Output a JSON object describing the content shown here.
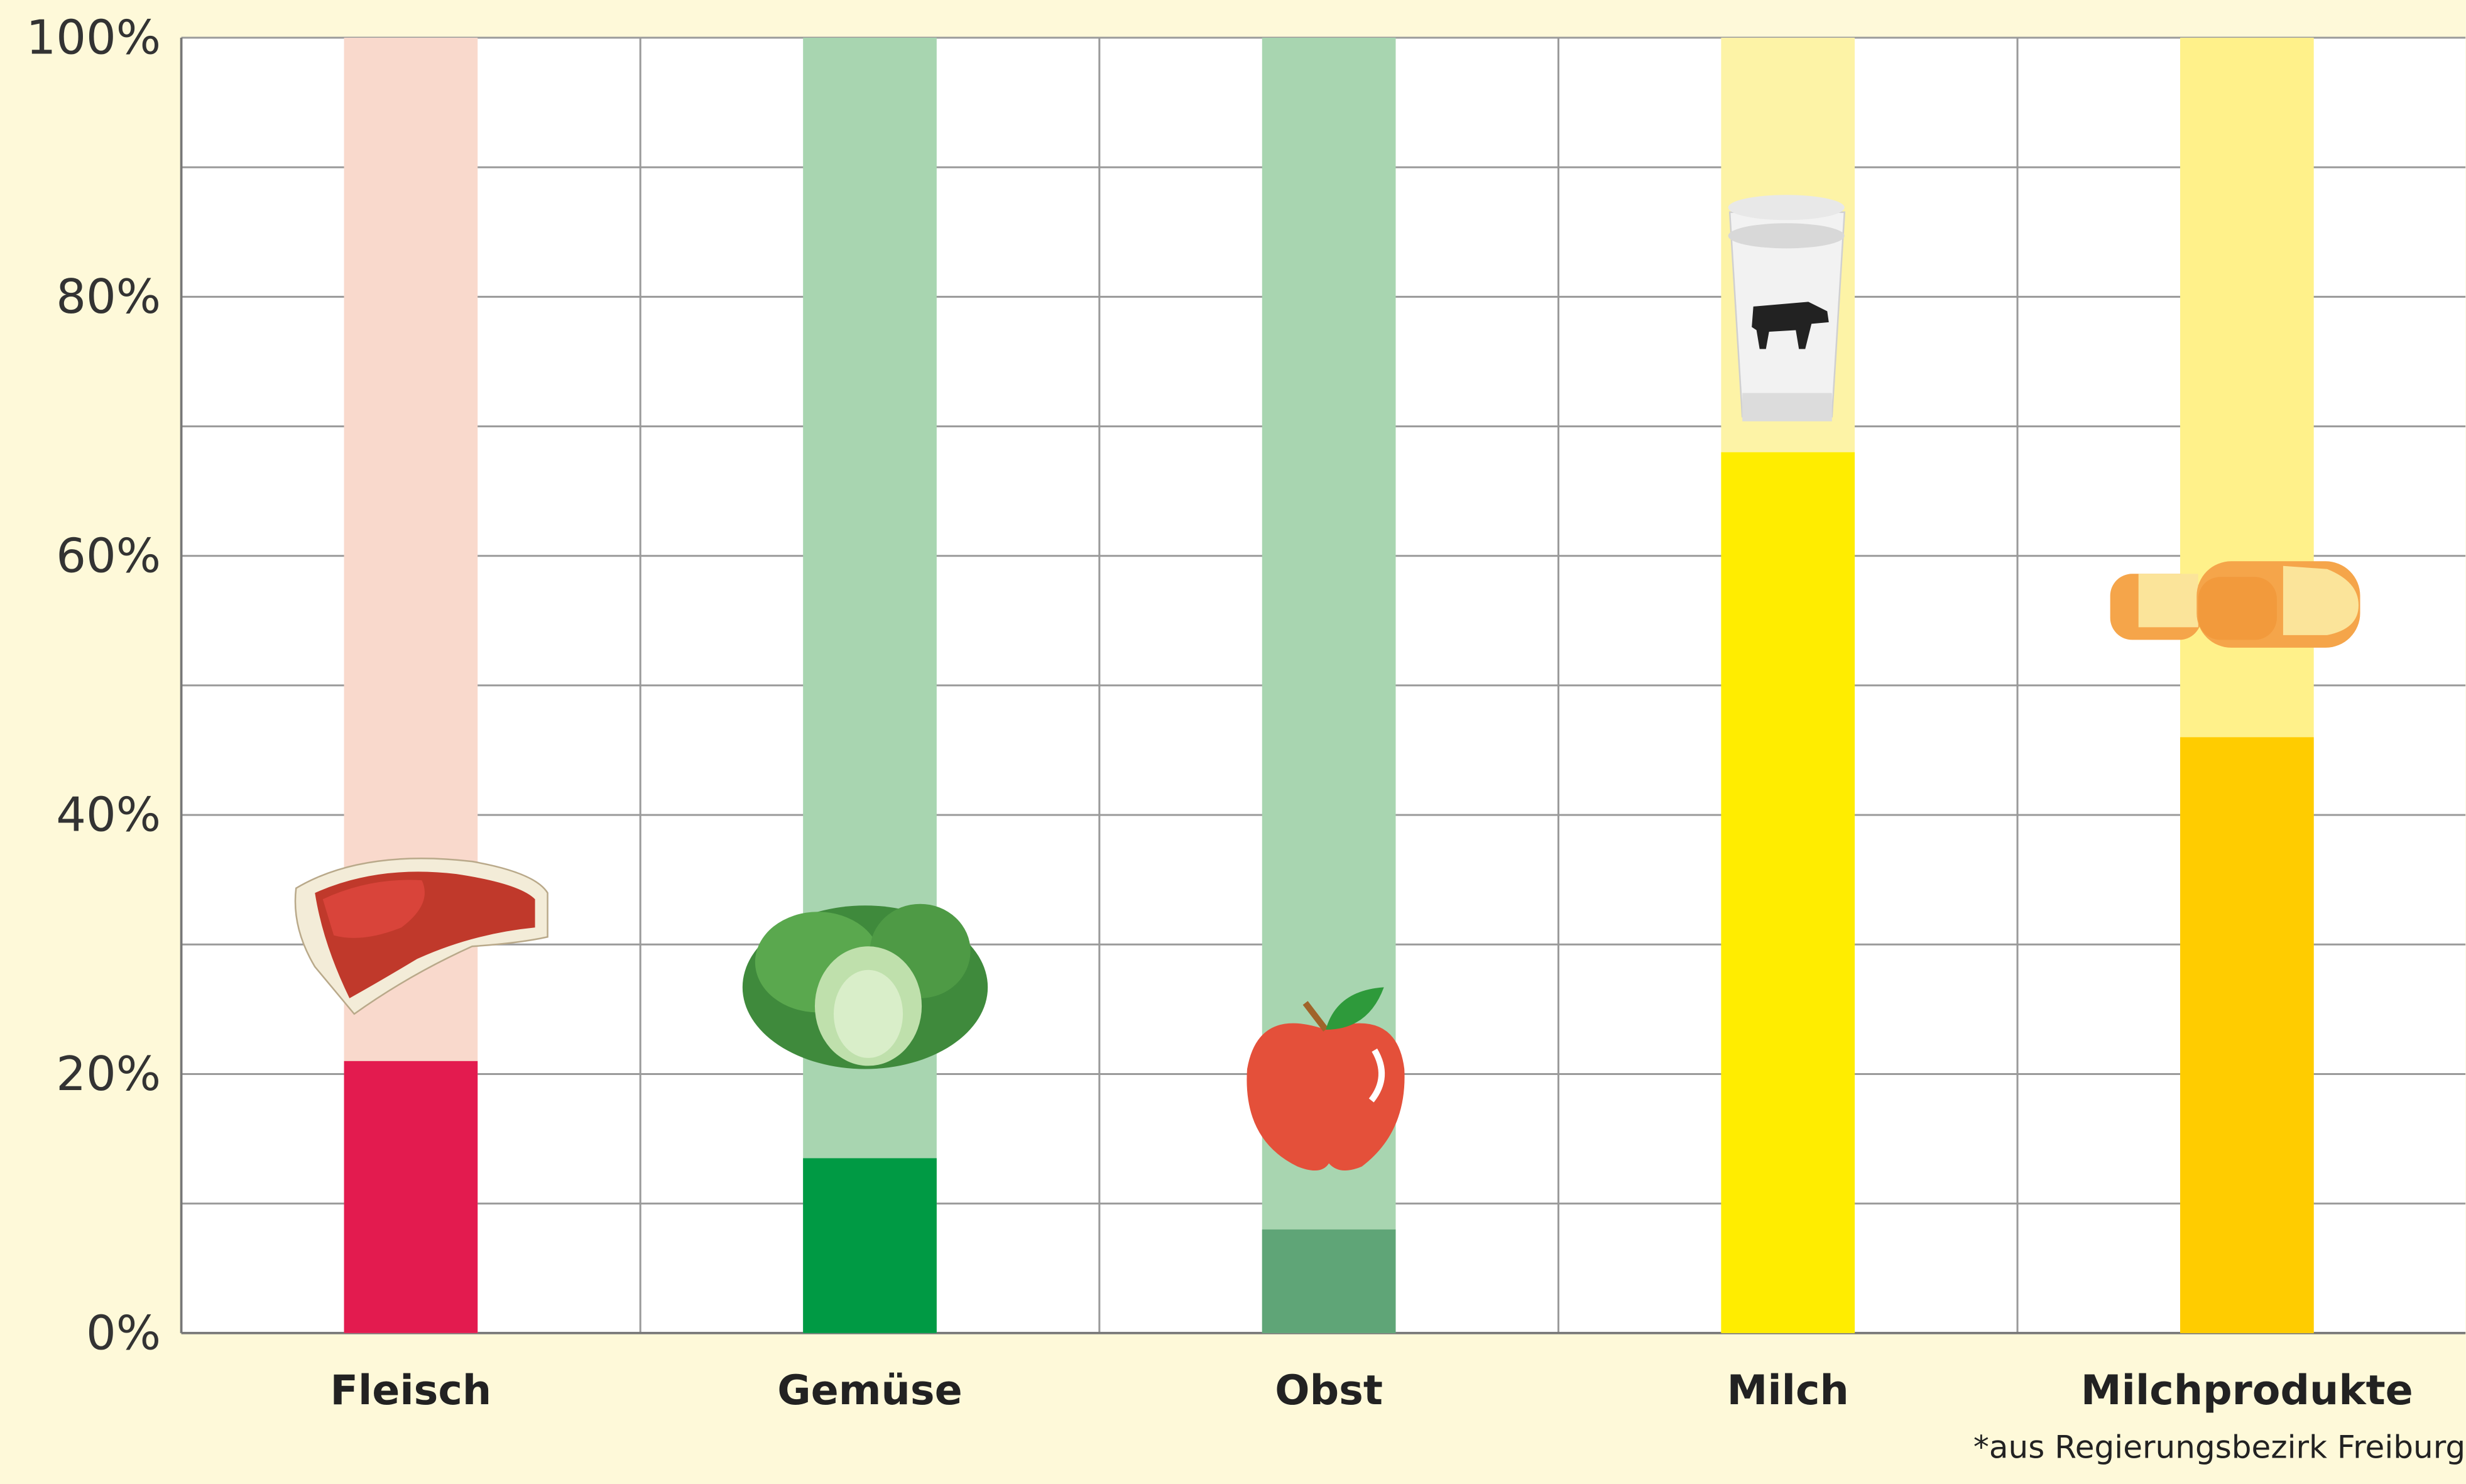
{
  "chart_data": {
    "type": "bar",
    "categories": [
      "Fleisch",
      "Gemüse",
      "Obst",
      "Milch",
      "Milchprodukte"
    ],
    "values": [
      21,
      13.5,
      8,
      68,
      46
    ],
    "colors": [
      "#e31b4f",
      "#009a44",
      "#5fa577",
      "#ffed00",
      "#ffcc00"
    ],
    "background_colors": [
      "#f9d9cc",
      "#a8d5b0",
      "#a8d5b0",
      "#fdf3a6",
      "#fff18a"
    ],
    "ylim": [
      0,
      100
    ],
    "yticks": [
      {
        "value": 0,
        "label": "0%"
      },
      {
        "value": 20,
        "label": "20%"
      },
      {
        "value": 40,
        "label": "40%"
      },
      {
        "value": 60,
        "label": "60%"
      },
      {
        "value": 80,
        "label": "80%"
      },
      {
        "value": 100,
        "label": "100%"
      }
    ],
    "minor_yticks": [
      10,
      30,
      50,
      70,
      90
    ],
    "grid": true,
    "footnote": "*aus Regierungsbezirk Freiburg"
  }
}
